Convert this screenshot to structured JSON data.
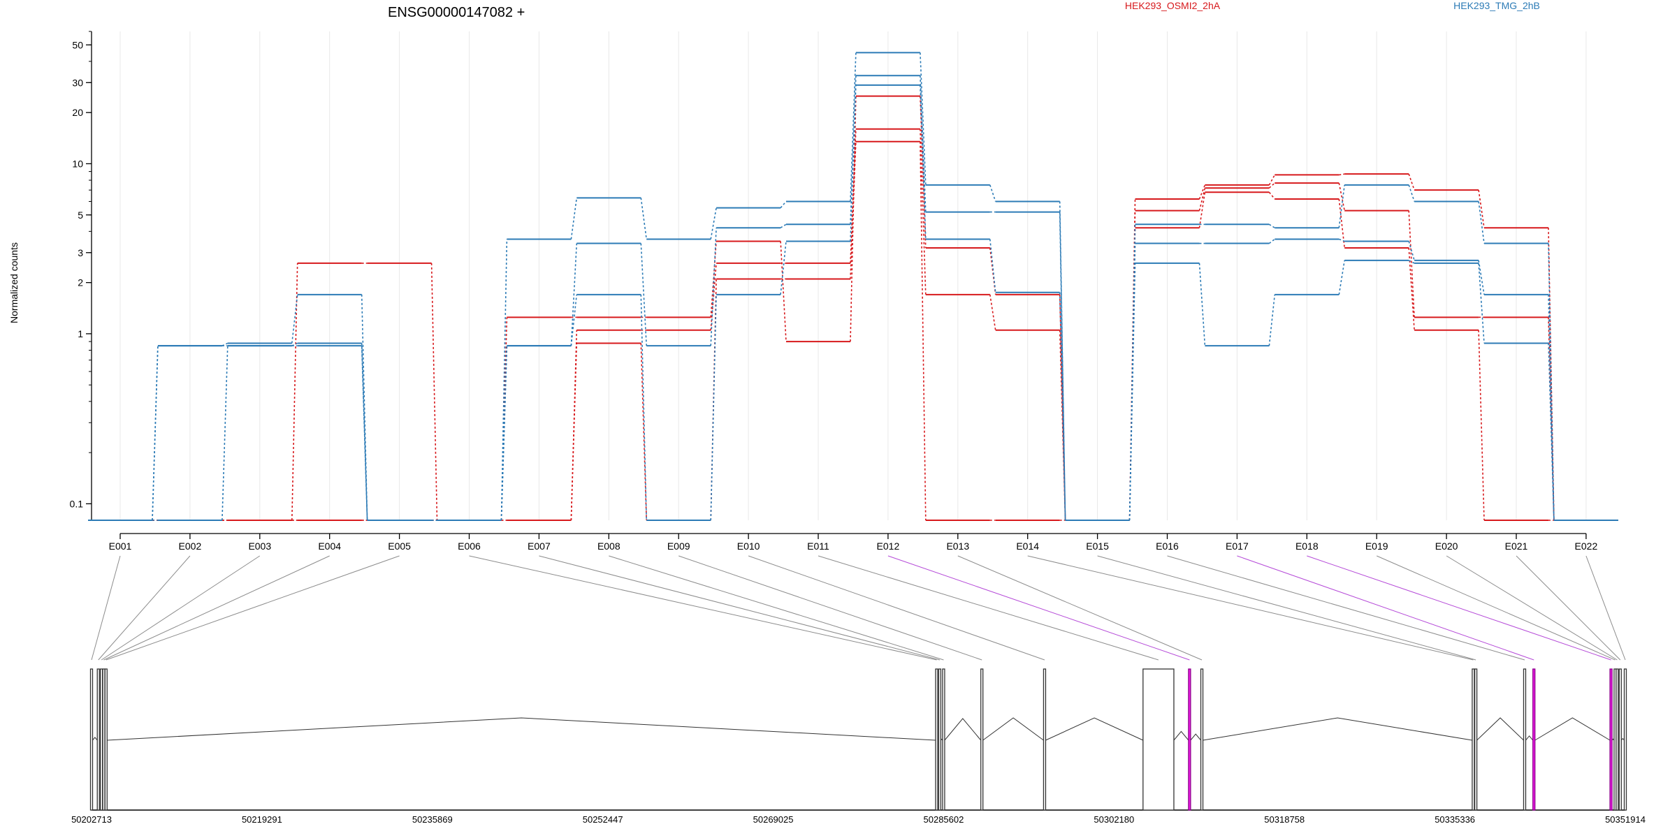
{
  "chart_data": {
    "type": "line",
    "title": "ENSG00000147082 +",
    "ylabel": "Normalized counts",
    "xlabel": "",
    "y_scale": "log",
    "ylim": [
      0.08,
      60
    ],
    "yticks": [
      0.1,
      1,
      2,
      3,
      5,
      10,
      20,
      30,
      50
    ],
    "grid": true,
    "legend_placement": "top-right",
    "categories": [
      "E001",
      "E002",
      "E003",
      "E004",
      "E005",
      "E006",
      "E007",
      "E008",
      "E009",
      "E010",
      "E011",
      "E012",
      "E013",
      "E014",
      "E015",
      "E016",
      "E017",
      "E018",
      "E019",
      "E020",
      "E021",
      "E022"
    ],
    "series": [
      {
        "name": "HEK293_OSMI2_2hA",
        "color": "#d7191c",
        "values": [
          0.08,
          0.08,
          0.08,
          2.6,
          2.6,
          0.08,
          1.25,
          1.25,
          1.25,
          3.5,
          0.9,
          25,
          3.2,
          1.7,
          0.08,
          6.2,
          7.5,
          8.6,
          8.7,
          7.0,
          4.2,
          0.08
        ]
      },
      {
        "name": "HEK293_OSMI2_2hA",
        "color": "#d7191c",
        "values": [
          0.08,
          0.08,
          0.08,
          0.08,
          0.08,
          0.08,
          0.08,
          1.05,
          1.05,
          2.6,
          2.6,
          16,
          1.7,
          1.05,
          0.08,
          5.3,
          7.2,
          7.7,
          5.3,
          1.25,
          1.25,
          0.08
        ]
      },
      {
        "name": "HEK293_OSMI2_2hA",
        "color": "#d7191c",
        "values": [
          0.08,
          0.08,
          0.08,
          0.08,
          0.08,
          0.08,
          0.08,
          0.88,
          0.08,
          2.1,
          2.1,
          13.5,
          0.08,
          0.08,
          0.08,
          4.2,
          6.8,
          6.2,
          3.2,
          1.05,
          0.08,
          0.08
        ]
      },
      {
        "name": "HEK293_TMG_2hB",
        "color": "#2c7bb6",
        "values": [
          0.08,
          0.85,
          0.88,
          1.7,
          0.08,
          0.08,
          3.6,
          6.3,
          3.6,
          5.5,
          6.0,
          45,
          7.5,
          6.0,
          0.08,
          4.4,
          4.4,
          4.2,
          7.5,
          6.0,
          3.4,
          0.08
        ]
      },
      {
        "name": "HEK293_TMG_2hB",
        "color": "#2c7bb6",
        "values": [
          0.08,
          0.85,
          0.85,
          0.88,
          0.08,
          0.08,
          0.85,
          3.4,
          0.85,
          4.2,
          4.4,
          33,
          5.2,
          5.2,
          0.08,
          3.4,
          3.4,
          3.6,
          3.5,
          2.7,
          1.7,
          0.08
        ]
      },
      {
        "name": "HEK293_TMG_2hB",
        "color": "#2c7bb6",
        "values": [
          0.08,
          0.08,
          0.85,
          0.85,
          0.08,
          0.08,
          0.85,
          1.7,
          0.08,
          1.7,
          3.5,
          29,
          3.6,
          1.75,
          0.08,
          2.6,
          0.85,
          1.7,
          2.7,
          2.6,
          0.88,
          0.08
        ]
      }
    ],
    "exon_intervals": [
      [
        50202713,
        50202713
      ],
      [
        50203350,
        50203400
      ],
      [
        50203650,
        50203700
      ],
      [
        50203880,
        50203930
      ],
      [
        50204100,
        50204150
      ],
      [
        50284900,
        50284950
      ],
      [
        50285200,
        50285250
      ],
      [
        50285602,
        50285602
      ],
      [
        50289300,
        50289350
      ],
      [
        50295400,
        50295450
      ],
      [
        50305000,
        50308000
      ],
      [
        50309500,
        50309550
      ],
      [
        50310700,
        50310750
      ],
      [
        50337100,
        50337150
      ],
      [
        50337350,
        50337400
      ],
      [
        50342100,
        50342150
      ],
      [
        50343000,
        50343050
      ],
      [
        50350500,
        50350550
      ],
      [
        50350900,
        50350950
      ],
      [
        50351100,
        50351150
      ],
      [
        50351400,
        50351450
      ],
      [
        50351914,
        50351914
      ]
    ],
    "highlighted_exons": [
      "E012",
      "E017",
      "E018"
    ],
    "highlight_color": "#f01ee6",
    "genomic_ticks": [
      "50202713",
      "50219291",
      "50235869",
      "50252447",
      "50269025",
      "50285602",
      "50302180",
      "50318758",
      "50335336",
      "50351914"
    ],
    "genomic_range": [
      50202713,
      50351914
    ]
  }
}
